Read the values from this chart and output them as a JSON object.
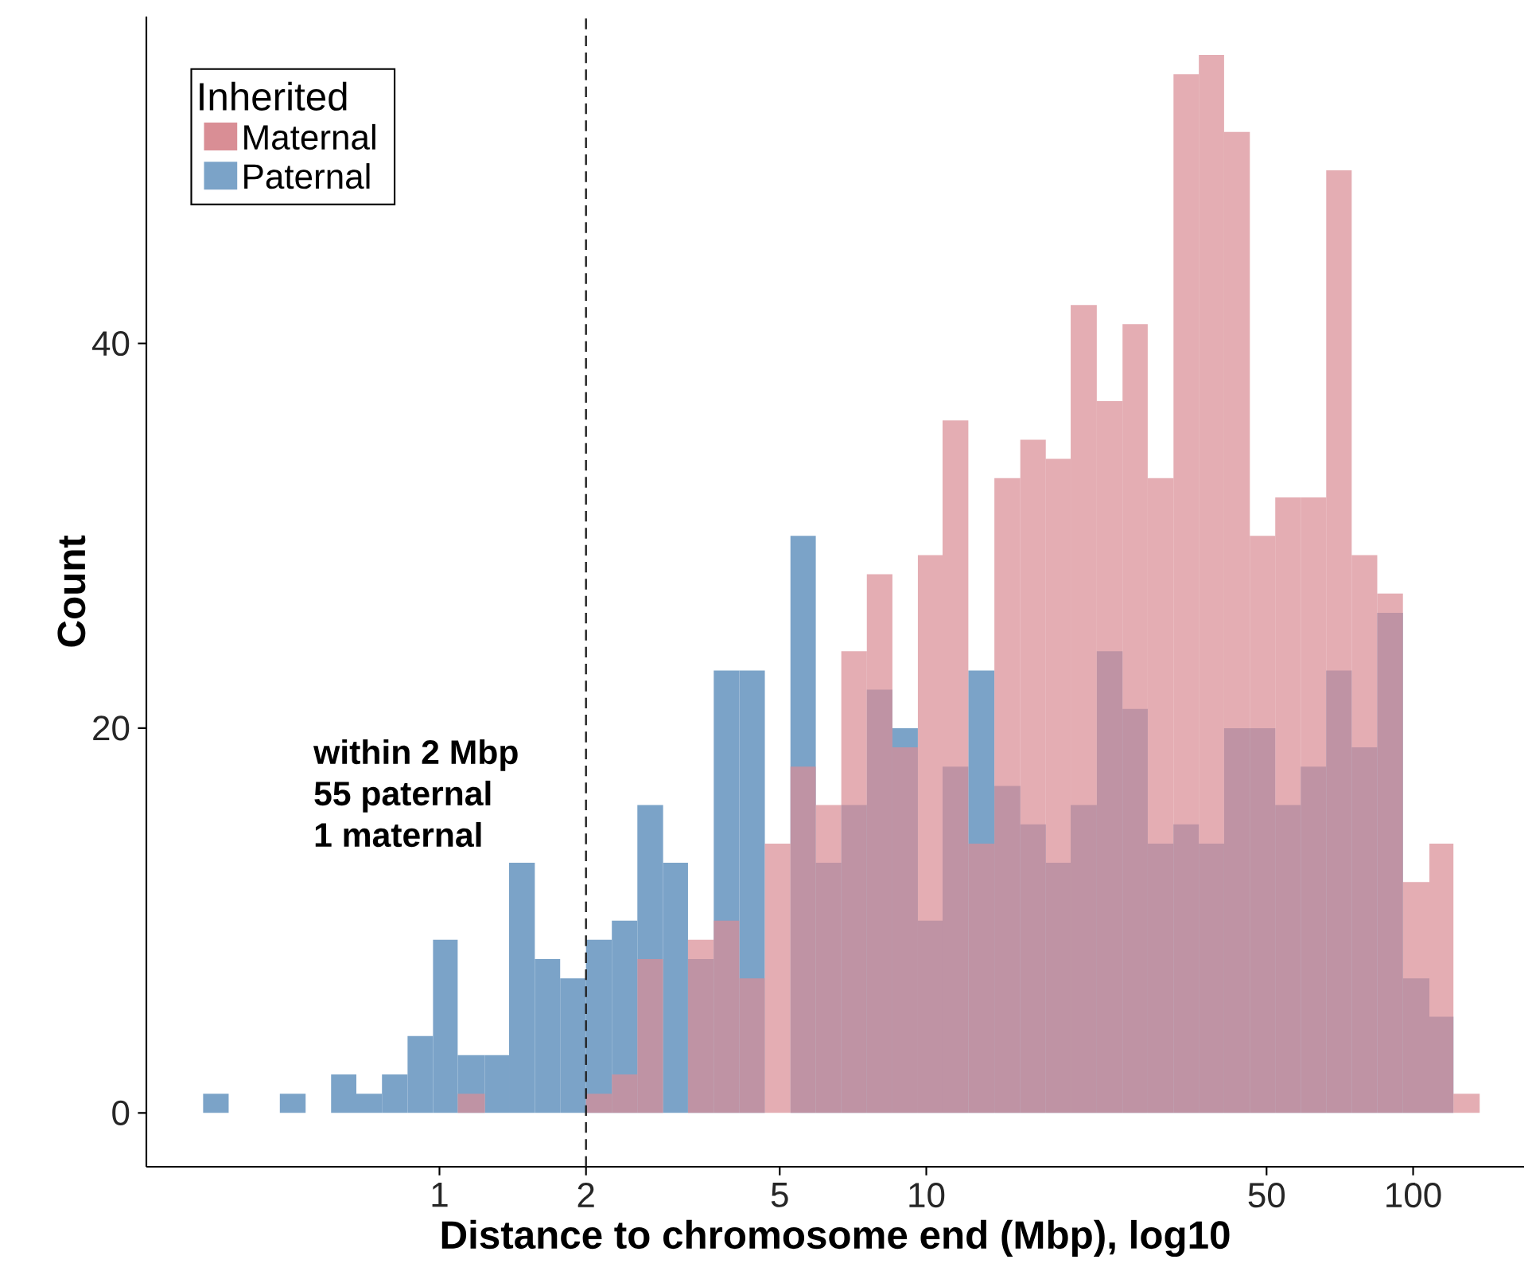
{
  "chart_data": {
    "type": "histogram",
    "xlabel": "Distance to chromosome end (Mbp), log10",
    "ylabel": "Count",
    "legend_title": "Inherited",
    "legend": "top left",
    "log": "x",
    "bins": [
      0.327,
      0.369,
      0.47,
      0.531,
      0.599,
      0.675,
      0.762,
      0.86,
      0.97,
      1.09,
      1.24,
      1.39,
      1.57,
      1.77,
      2.0,
      2.26,
      2.55,
      2.88,
      3.24,
      3.66,
      4.13,
      4.66,
      5.26,
      5.93,
      6.69,
      7.55,
      8.52,
      9.61,
      10.8,
      12.2,
      13.8,
      15.6,
      17.6,
      19.8,
      22.4,
      25.3,
      28.5,
      32.2,
      36.3,
      40.9,
      46.2,
      52.1,
      58.8,
      66.3,
      74.8,
      84.4,
      95.3,
      108,
      121,
      137
    ],
    "series": [
      {
        "name": "Maternal",
        "color": "#d98e95",
        "values": [
          0,
          0,
          0,
          0,
          0,
          0,
          0,
          0,
          0,
          1,
          0,
          0,
          0,
          0,
          1,
          2,
          8,
          0,
          9,
          10,
          7,
          14,
          18,
          16,
          24,
          28,
          19,
          29,
          36,
          14,
          33,
          35,
          34,
          42,
          37,
          41,
          33,
          54,
          55,
          51,
          30,
          32,
          32,
          49,
          29,
          27,
          12,
          14,
          1
        ]
      },
      {
        "name": "Paternal",
        "color": "#7ba3c8",
        "values": [
          1,
          0,
          1,
          0,
          2,
          1,
          2,
          4,
          9,
          3,
          3,
          13,
          8,
          7,
          9,
          10,
          16,
          13,
          8,
          23,
          23,
          null,
          30,
          13,
          16,
          22,
          20,
          10,
          18,
          23,
          17,
          15,
          13,
          16,
          24,
          21,
          14,
          15,
          14,
          20,
          20,
          16,
          18,
          23,
          19,
          26,
          7,
          5,
          null
        ]
      }
    ],
    "xlim": [
      0.25,
      169
    ],
    "ylim": [
      -2.8,
      57
    ],
    "xticks": [
      1,
      2,
      5,
      10,
      50,
      100
    ],
    "yticks": [
      0,
      20,
      40
    ],
    "ref_lines": [
      {
        "axis": "x",
        "value": 2,
        "line_style": "dashed",
        "color": "#222222"
      }
    ],
    "annotations": [
      "within 2 Mbp",
      "55 paternal",
      "1 maternal"
    ]
  }
}
